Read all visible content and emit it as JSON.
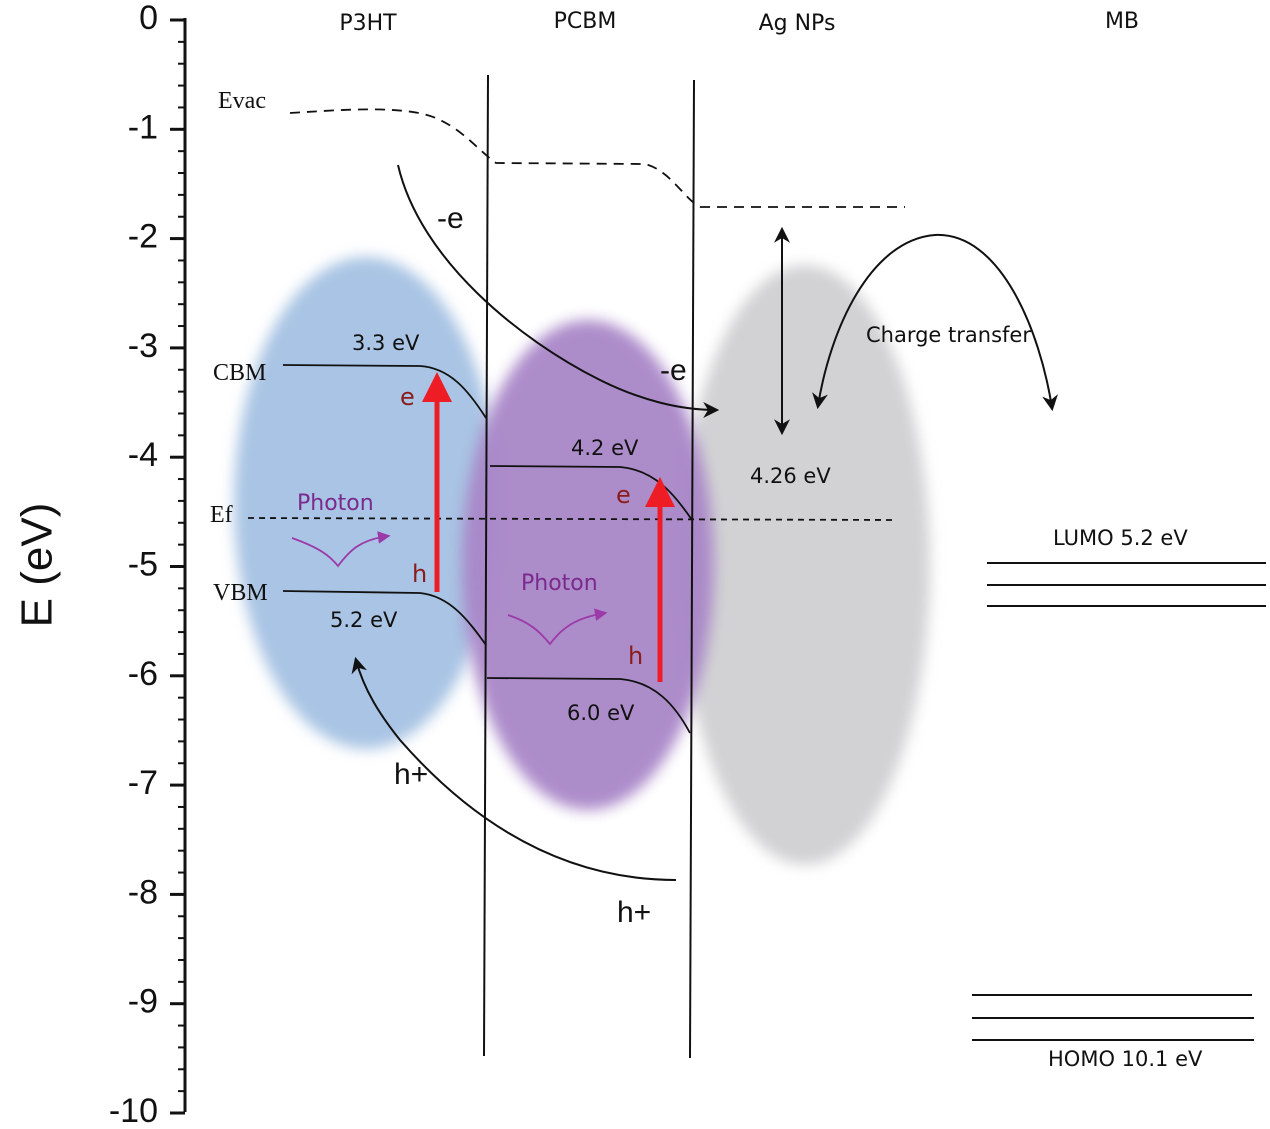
{
  "axis": {
    "title": "E (eV)",
    "ticks": [
      "0",
      "-1",
      "-2",
      "-3",
      "-4",
      "-5",
      "-6",
      "-7",
      "-8",
      "-9",
      "-10"
    ]
  },
  "columns": {
    "p3ht": "P3HT",
    "pcbm": "PCBM",
    "ag": "Ag NPs",
    "mb": "MB"
  },
  "levels": {
    "evac": "Evac",
    "cbm": "CBM",
    "vbm": "VBM",
    "ef": "Ef"
  },
  "values": {
    "p3ht_cbm": "3.3 eV",
    "p3ht_vbm": "5.2 eV",
    "pcbm_lumo": "4.2 eV",
    "pcbm_homo": "6.0 eV",
    "ag_work": "4.26 eV",
    "mb_lumo": "LUMO  5.2  eV",
    "mb_homo": "HOMO  10.1 eV"
  },
  "carriers": {
    "electron_minus_1": "-e",
    "electron_minus_2": "-e",
    "hole_plus_1": "h+",
    "hole_plus_2": "h+",
    "e1": "e",
    "h1": "h",
    "e2": "e",
    "h2": "h"
  },
  "photons": {
    "photon_1": "Photon",
    "photon_2": "Photon"
  },
  "charge_transfer": "Charge transfer",
  "colors": {
    "p3ht_blob": "#a9c4e4",
    "pcbm_blob": "#a986c8",
    "ag_blob": "#d2d2d4",
    "excitation_arrow": "#ee1c25",
    "photon": "#9b3aa8"
  }
}
